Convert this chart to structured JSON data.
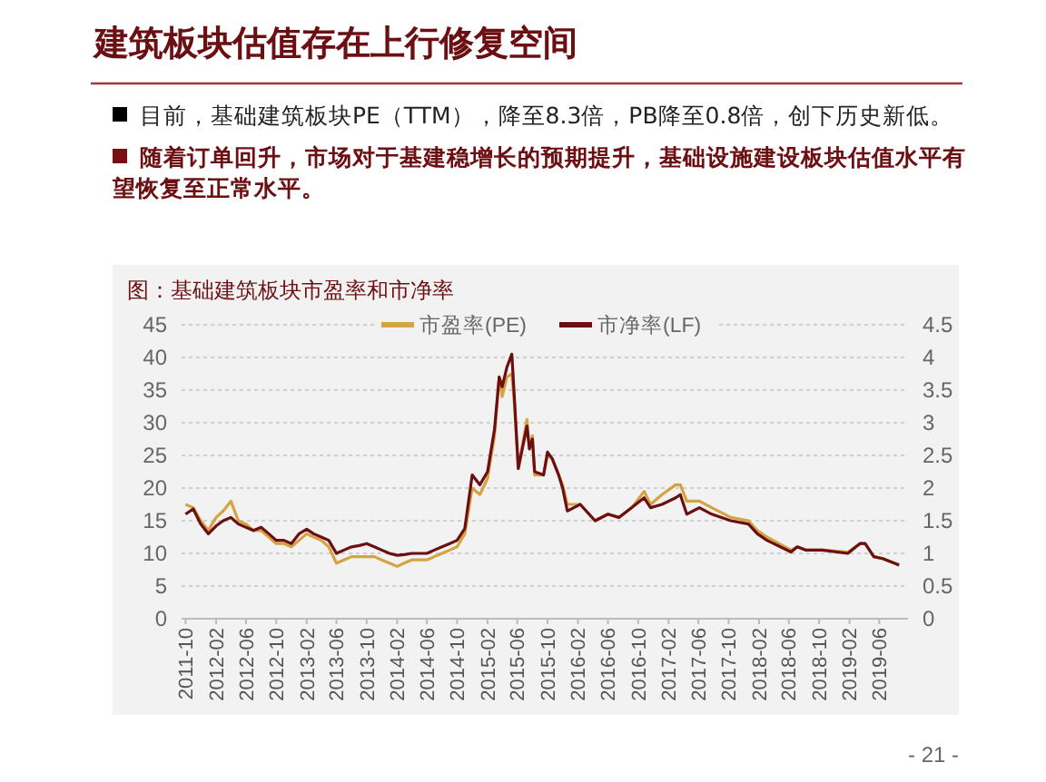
{
  "chart_data": {
    "type": "line",
    "title": "建筑板块估值存在上行修复空间",
    "subtitle": "图：基础建筑板块市盈率和市净率",
    "annotations": [
      "目前，基础建筑板块PE（TTM），降至8.3倍，PB降至0.8倍，创下历史新低。",
      "随着订单回升，市场对于基建稳增长的预期提升，基础设施建设板块估值水平有望恢复至正常水平。",
      "- 21 -"
    ],
    "x": [
      "2011-10-01",
      "2011-11-01",
      "2011-12-01",
      "2012-01-01",
      "2012-02-01",
      "2012-03-01",
      "2012-04-01",
      "2012-05-01",
      "2012-06-01",
      "2012-07-01",
      "2012-08-01",
      "2012-09-01",
      "2012-10-01",
      "2012-11-01",
      "2012-12-01",
      "2013-01-01",
      "2013-02-01",
      "2013-03-01",
      "2013-04-01",
      "2013-05-01",
      "2013-06-01",
      "2013-07-01",
      "2013-08-01",
      "2013-09-01",
      "2013-10-01",
      "2013-11-01",
      "2013-12-01",
      "2014-01-01",
      "2014-02-01",
      "2014-03-01",
      "2014-04-01",
      "2014-05-01",
      "2014-06-01",
      "2014-07-01",
      "2014-08-01",
      "2014-09-01",
      "2014-10-01",
      "2014-11-01",
      "2014-12-01",
      "2015-01-01",
      "2015-02-01",
      "2015-03-01",
      "2015-03-20",
      "2015-04-01",
      "2015-04-20",
      "2015-05-10",
      "2015-05-20",
      "2015-06-05",
      "2015-07-10",
      "2015-07-20",
      "2015-08-01",
      "2015-08-10",
      "2015-09-15",
      "2015-10-01",
      "2015-10-20",
      "2015-11-15",
      "2015-12-01",
      "2015-12-20",
      "2016-01-15",
      "2016-02-10",
      "2016-04-10",
      "2016-06-01",
      "2016-07-15",
      "2016-09-05",
      "2016-10-25",
      "2016-11-20",
      "2017-01-05",
      "2017-03-01",
      "2017-03-20",
      "2017-04-15",
      "2017-06-05",
      "2017-07-25",
      "2017-10-10",
      "2017-12-20",
      "2018-01-25",
      "2018-03-05",
      "2018-06-10",
      "2018-07-05",
      "2018-08-10",
      "2018-10-15",
      "2019-01-25",
      "2019-03-15",
      "2019-04-05",
      "2019-05-10",
      "2019-06-15",
      "2019-08-01",
      "2019-08-20"
    ],
    "series": [
      {
        "name": "市盈率(PE)",
        "color": "#d4a442",
        "values": [
          17.5,
          17,
          15,
          13.5,
          15.5,
          16.5,
          18,
          15,
          14.5,
          13.5,
          13.5,
          12.5,
          11.5,
          11.5,
          11,
          12,
          13,
          12.5,
          12,
          11,
          8.5,
          9,
          9.5,
          9.5,
          9.5,
          9.5,
          9,
          8.5,
          8,
          8.5,
          9,
          9,
          9,
          9.5,
          10,
          10.5,
          11,
          13,
          20,
          19,
          21.5,
          28,
          37,
          34,
          37,
          37.5,
          33,
          23,
          30.5,
          26,
          28,
          22,
          22,
          25,
          24.5,
          22,
          20.5,
          17.5,
          17.5,
          17.5,
          15,
          16,
          15.5,
          17,
          19.5,
          17.5,
          19,
          20.5,
          20.5,
          18,
          18,
          17,
          15.5,
          15,
          13.5,
          12.5,
          10.5,
          11,
          10.5,
          10.5,
          10.2,
          11.5,
          11.5,
          9.5,
          9.2,
          8.5,
          8.3
        ]
      },
      {
        "name": "市净率(LF)",
        "color": "#6b0f12",
        "axis": "y2",
        "values": [
          1.6,
          1.68,
          1.45,
          1.3,
          1.42,
          1.5,
          1.55,
          1.45,
          1.4,
          1.35,
          1.4,
          1.3,
          1.2,
          1.2,
          1.15,
          1.3,
          1.37,
          1.3,
          1.25,
          1.2,
          1.0,
          1.05,
          1.1,
          1.12,
          1.15,
          1.1,
          1.05,
          1.0,
          0.97,
          0.98,
          1.0,
          1.0,
          1.0,
          1.05,
          1.1,
          1.15,
          1.2,
          1.38,
          2.2,
          2.05,
          2.25,
          2.9,
          3.7,
          3.55,
          3.85,
          4.05,
          3.4,
          2.3,
          2.95,
          2.6,
          2.75,
          2.25,
          2.2,
          2.55,
          2.45,
          2.2,
          2.0,
          1.65,
          1.7,
          1.75,
          1.5,
          1.6,
          1.55,
          1.7,
          1.85,
          1.7,
          1.75,
          1.85,
          1.9,
          1.6,
          1.7,
          1.6,
          1.5,
          1.45,
          1.3,
          1.2,
          1.02,
          1.1,
          1.05,
          1.05,
          1.0,
          1.15,
          1.15,
          0.95,
          0.92,
          0.85,
          0.82
        ]
      }
    ],
    "xlim": [
      "2011-09-15",
      "2019-09-25"
    ],
    "xticks": [
      "2011-10",
      "2012-02",
      "2012-06",
      "2012-10",
      "2013-02",
      "2013-06",
      "2013-10",
      "2014-02",
      "2014-06",
      "2014-10",
      "2015-02",
      "2015-06",
      "2015-10",
      "2016-02",
      "2016-06",
      "2016-10",
      "2017-02",
      "2017-06",
      "2017-10",
      "2018-02",
      "2018-06",
      "2018-10",
      "2019-02",
      "2019-06"
    ],
    "ylim": [
      0,
      45
    ],
    "yticks": [
      0,
      5,
      10,
      15,
      20,
      25,
      30,
      35,
      40,
      45
    ],
    "y2lim": [
      0,
      4.5
    ],
    "y2ticks": [
      0,
      0.5,
      1,
      1.5,
      2,
      2.5,
      3,
      3.5,
      4,
      4.5
    ],
    "grid": "y",
    "legend": "top right",
    "line_style": "solid",
    "marker": "none"
  }
}
